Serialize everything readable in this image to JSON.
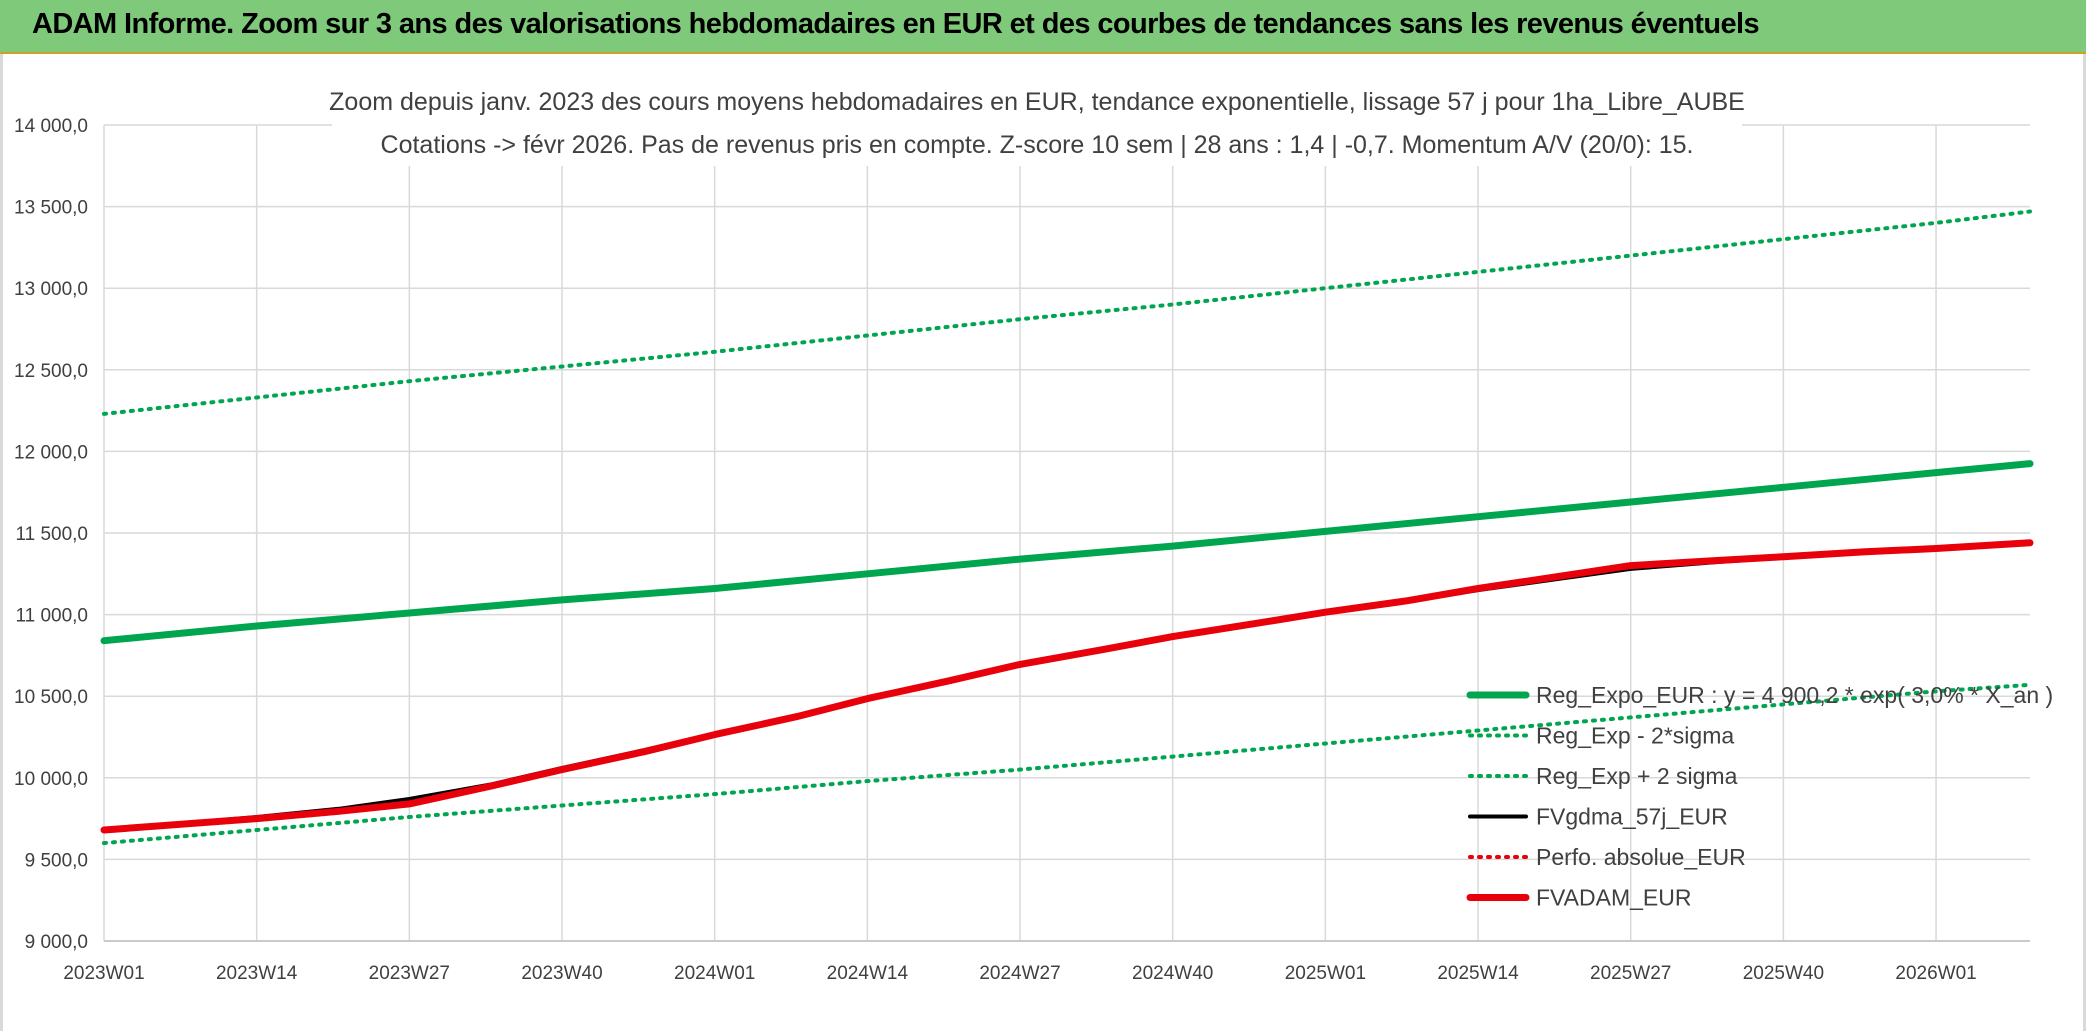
{
  "banner": {
    "title": "ADAM Informe. Zoom sur 3 ans des valorisations hebdomadaires en EUR et des courbes de tendances sans les revenus éventuels"
  },
  "chart_data": {
    "type": "line",
    "title": "Zoom depuis janv. 2023 des cours moyens hebdomadaires en EUR, tendance exponentielle, lissage 57 j pour 1ha_Libre_AUBE",
    "subtitle": "Cotations -> févr 2026. Pas de revenus pris en compte. Z-score 10 sem | 28 ans : 1,4 | -0,7. Momentum A/V (20/0): 15.",
    "xlabel": "",
    "ylabel": "",
    "ylim": [
      9000,
      14000
    ],
    "yticks": [
      9000,
      9500,
      10000,
      10500,
      11000,
      11500,
      12000,
      12500,
      13000,
      13500,
      14000
    ],
    "ytick_labels": [
      "9 000,0",
      "9 500,0",
      "10 000,0",
      "10 500,0",
      "11 000,0",
      "11 500,0",
      "12 000,0",
      "12 500,0",
      "13 000,0",
      "13 500,0",
      "14 000,0"
    ],
    "x_tick_labels": [
      "2023W01",
      "2023W14",
      "2023W27",
      "2023W40",
      "2024W01",
      "2024W14",
      "2024W27",
      "2024W40",
      "2025W01",
      "2025W14",
      "2025W27",
      "2025W40",
      "2026W01"
    ],
    "x_tick_weeks": [
      0,
      13,
      26,
      39,
      52,
      65,
      78,
      91,
      104,
      117,
      130,
      143,
      156
    ],
    "x_range_weeks": [
      0,
      164
    ],
    "grid": true,
    "legend_position": "bottom-right",
    "colors": {
      "green": "#00a550",
      "black": "#000000",
      "red": "#e8000b",
      "grid": "#d9d9d9"
    },
    "series": [
      {
        "name": "Reg_Expo_EUR : y = 4 900,2 * exp( 3,0% * X_an )",
        "style": "solid-thick",
        "color": "#00a550",
        "x": [
          0,
          13,
          26,
          39,
          52,
          65,
          78,
          91,
          104,
          117,
          130,
          143,
          156,
          164
        ],
        "y": [
          10840,
          10930,
          11010,
          11090,
          11160,
          11250,
          11340,
          11420,
          11510,
          11600,
          11690,
          11780,
          11870,
          11925
        ]
      },
      {
        "name": "Reg_Exp - 2*sigma",
        "style": "dotted",
        "color": "#00a550",
        "x": [
          0,
          13,
          26,
          39,
          52,
          65,
          78,
          91,
          104,
          117,
          130,
          143,
          156,
          164
        ],
        "y": [
          9600,
          9680,
          9760,
          9830,
          9900,
          9980,
          10050,
          10130,
          10210,
          10290,
          10370,
          10450,
          10530,
          10570
        ]
      },
      {
        "name": "Reg_Exp + 2 sigma",
        "style": "dotted",
        "color": "#00a550",
        "x": [
          0,
          13,
          26,
          39,
          52,
          65,
          78,
          91,
          104,
          117,
          130,
          143,
          156,
          164
        ],
        "y": [
          12230,
          12330,
          12430,
          12520,
          12610,
          12710,
          12810,
          12900,
          13000,
          13100,
          13200,
          13300,
          13400,
          13470
        ]
      },
      {
        "name": "FVgdma_57j_EUR",
        "style": "solid",
        "color": "#000000",
        "x": [
          0,
          13,
          20,
          26,
          33,
          39,
          46,
          52,
          59,
          65,
          72,
          78,
          85,
          91,
          98,
          104,
          111,
          117,
          124,
          130,
          137,
          143,
          150,
          156,
          164
        ],
        "y": [
          9680,
          9760,
          9810,
          9870,
          9960,
          10060,
          10170,
          10270,
          10380,
          10490,
          10600,
          10690,
          10780,
          10860,
          10940,
          11010,
          11080,
          11150,
          11220,
          11280,
          11320,
          11350,
          11380,
          11400,
          11440
        ]
      },
      {
        "name": "Perfo. absolue_EUR",
        "style": "dotted",
        "color": "#e8000b",
        "x": [
          0,
          13,
          20,
          26,
          33,
          39,
          46,
          52,
          59,
          65,
          72,
          78,
          85,
          91,
          98,
          104,
          111,
          117,
          124,
          130,
          137,
          143,
          150,
          156,
          164
        ],
        "y": [
          9680,
          9750,
          9795,
          9840,
          9950,
          10050,
          10160,
          10265,
          10375,
          10485,
          10595,
          10695,
          10785,
          10865,
          10945,
          11015,
          11085,
          11160,
          11235,
          11300,
          11330,
          11355,
          11385,
          11405,
          11440
        ]
      },
      {
        "name": "FVADAM_EUR",
        "style": "solid-thick",
        "color": "#e8000b",
        "x": [
          0,
          13,
          20,
          26,
          33,
          39,
          46,
          52,
          59,
          65,
          72,
          78,
          85,
          91,
          98,
          104,
          111,
          117,
          124,
          130,
          137,
          143,
          150,
          156,
          164
        ],
        "y": [
          9680,
          9750,
          9795,
          9840,
          9950,
          10050,
          10160,
          10265,
          10375,
          10485,
          10595,
          10695,
          10785,
          10865,
          10945,
          11015,
          11085,
          11160,
          11235,
          11300,
          11330,
          11355,
          11385,
          11405,
          11440
        ]
      }
    ]
  }
}
